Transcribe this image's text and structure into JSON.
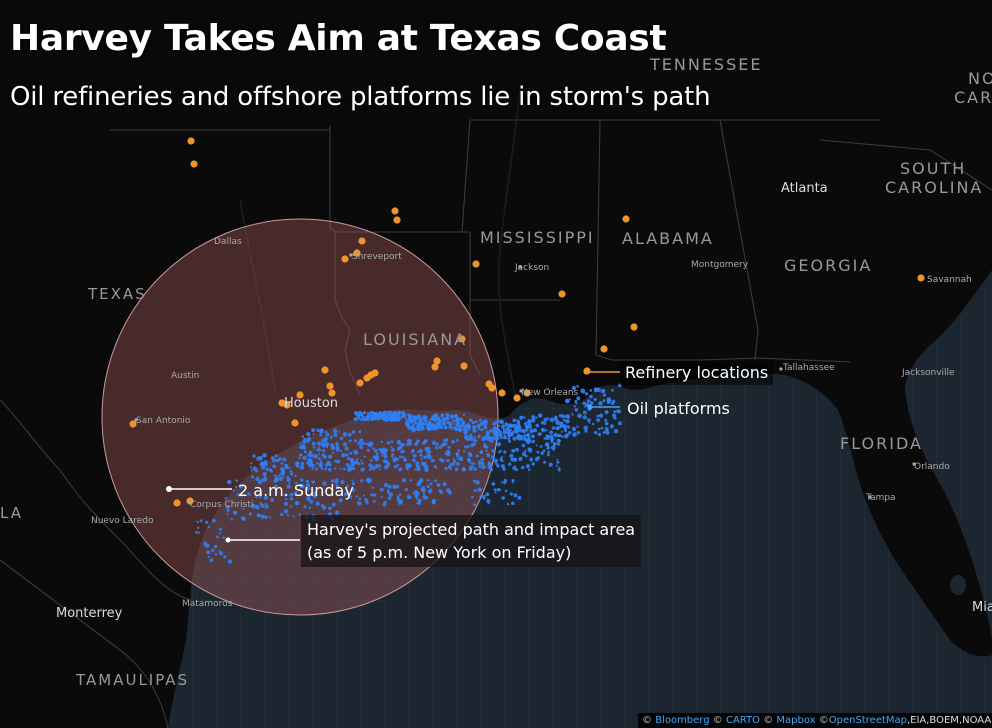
{
  "header": {
    "title": "Harvey Takes Aim at Texas Coast",
    "subtitle": "Oil refineries and offshore platforms lie in storm's path"
  },
  "map": {
    "state_labels": {
      "tennessee": "TENNESSEE",
      "north_carolina": "NO",
      "carolina_partial": "CAR",
      "south": "SOUTH",
      "carolina": "CAROLINA",
      "mississippi": "MISSISSIPPI",
      "alabama": "ALABAMA",
      "georgia": "GEORGIA",
      "texas": "TEXAS",
      "louisiana": "LOUISIANA",
      "florida": "FLORIDA",
      "tamaulipas": "TAMAULIPAS",
      "la_partial": "LA"
    },
    "city_labels": {
      "atlanta": "Atlanta",
      "dallas": "Dallas",
      "shreveport": "Shreveport",
      "jackson": "Jackson",
      "montgomery": "Montgomery",
      "savannah": "Savannah",
      "austin": "Austin",
      "houston": "Houston",
      "new_orleans": "New Orleans",
      "tallahassee": "Tallahassee",
      "jacksonville": "Jacksonville",
      "san_antonio": "San Antonio",
      "orlando": "Orlando",
      "tampa": "Tampa",
      "nuevo_laredo": "Nuevo Laredo",
      "corpus_christi": "Corpus Christi",
      "monterrey": "Monterrey",
      "matamoros": "Matamoros",
      "miami_partial": "Mia"
    },
    "colors": {
      "refinery": "#f0932b",
      "platform": "#2f7ff5",
      "impact_area": "#a0585a",
      "land": "#0a0a0a",
      "water": "#1c2630"
    }
  },
  "legend": {
    "refinery": "Refinery locations",
    "platform": "Oil platforms"
  },
  "annotations": {
    "time": "2 a.m. Sunday",
    "path_line1": "Harvey's projected path and impact area",
    "path_line2": "(as of 5 p.m. New York on Friday)"
  },
  "attribution": {
    "symbol": "©",
    "bloomberg": "Bloomberg",
    "carto": "CARTO",
    "mapbox": "Mapbox",
    "osm": "OpenStreetMap",
    "rest": ",EIA,BOEM,NOAA,"
  }
}
